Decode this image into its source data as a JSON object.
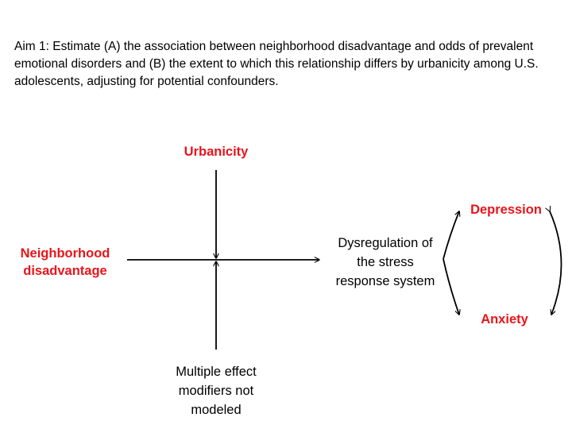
{
  "aim_text": "Aim 1: Estimate (A) the association between neighborhood disadvantage and odds of prevalent emotional disorders and (B) the extent to which this relationship differs by urbanicity among U.S. adolescents, adjusting for potential confounders.",
  "nodes": {
    "urbanicity": "Urbanicity",
    "neighborhood_line1": "Neighborhood",
    "neighborhood_line2": "disadvantage",
    "dysregulation_line1": "Dysregulation of",
    "dysregulation_line2": "the stress",
    "dysregulation_line3": "response system",
    "depression": "Depression",
    "anxiety": "Anxiety",
    "modifiers_line1": "Multiple effect",
    "modifiers_line2": "modifiers not",
    "modifiers_line3": "modeled"
  },
  "colors": {
    "highlight": "#e8151b",
    "text": "#000000",
    "arrow": "#000000"
  }
}
